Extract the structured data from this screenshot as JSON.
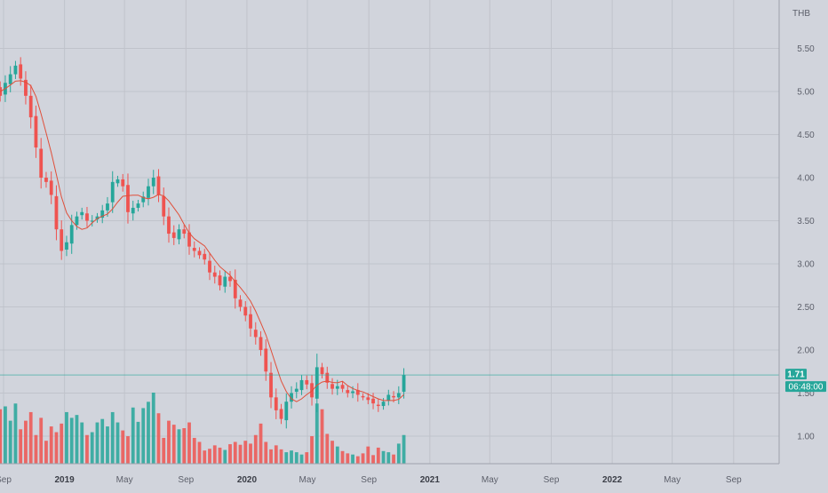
{
  "chart_data": {
    "type": "candlestick",
    "currency_label": "THB",
    "y_ticks": [
      1.0,
      1.5,
      2.0,
      2.5,
      3.0,
      3.5,
      4.0,
      4.5,
      5.0,
      5.5
    ],
    "y_tick_labels": [
      "1.00",
      "1.50",
      "2.00",
      "2.50",
      "3.00",
      "3.50",
      "4.00",
      "4.50",
      "5.00",
      "5.50"
    ],
    "x_ticks": [
      {
        "label": "Sep",
        "date": "2018-09-01",
        "bold": false
      },
      {
        "label": "2019",
        "date": "2019-01-01",
        "bold": true
      },
      {
        "label": "May",
        "date": "2019-05-01",
        "bold": false
      },
      {
        "label": "Sep",
        "date": "2019-09-01",
        "bold": false
      },
      {
        "label": "2020",
        "date": "2020-01-01",
        "bold": true
      },
      {
        "label": "May",
        "date": "2020-05-01",
        "bold": false
      },
      {
        "label": "Sep",
        "date": "2020-09-01",
        "bold": false
      },
      {
        "label": "2021",
        "date": "2021-01-01",
        "bold": true
      },
      {
        "label": "May",
        "date": "2021-05-01",
        "bold": false
      },
      {
        "label": "Sep",
        "date": "2021-09-01",
        "bold": false
      },
      {
        "label": "2022",
        "date": "2022-01-01",
        "bold": true
      },
      {
        "label": "May",
        "date": "2022-05-01",
        "bold": false
      },
      {
        "label": "Sep",
        "date": "2022-09-01",
        "bold": false
      }
    ],
    "last_price": 1.71,
    "last_price_label": "1.71",
    "countdown_label": "06:48:00",
    "series": {
      "closes": [
        5.05,
        4.95,
        5.1,
        5.2,
        5.3,
        5.15,
        4.95,
        4.7,
        4.35,
        4.0,
        3.95,
        3.8,
        3.4,
        3.15,
        3.25,
        3.45,
        3.55,
        3.6,
        3.5,
        3.5,
        3.55,
        3.62,
        3.7,
        3.95,
        3.98,
        3.9,
        3.6,
        3.65,
        3.7,
        3.78,
        3.9,
        4.0,
        3.8,
        3.55,
        3.35,
        3.3,
        3.4,
        3.35,
        3.2,
        3.15,
        3.1,
        3.05,
        2.9,
        2.85,
        2.75,
        2.85,
        2.8,
        2.6,
        2.5,
        2.4,
        2.25,
        2.15,
        2.0,
        1.75,
        1.45,
        1.3,
        1.2,
        1.4,
        1.5,
        1.55,
        1.65,
        1.6,
        1.45,
        1.8,
        1.72,
        1.62,
        1.55,
        1.58,
        1.55,
        1.5,
        1.52,
        1.48,
        1.45,
        1.42,
        1.38,
        1.35,
        1.4,
        1.48,
        1.45,
        1.5,
        1.71
      ],
      "volumes": [
        110,
        95,
        100,
        75,
        105,
        60,
        75,
        90,
        50,
        80,
        40,
        65,
        55,
        70,
        90,
        80,
        85,
        72,
        50,
        55,
        72,
        78,
        65,
        90,
        72,
        58,
        48,
        98,
        73,
        97,
        108,
        124,
        88,
        45,
        75,
        68,
        60,
        62,
        72,
        45,
        38,
        23,
        26,
        32,
        28,
        24,
        34,
        38,
        33,
        40,
        35,
        50,
        70,
        38,
        25,
        32,
        25,
        20,
        23,
        20,
        16,
        20,
        48,
        105,
        95,
        52,
        40,
        30,
        22,
        18,
        16,
        13,
        18,
        30,
        15,
        28,
        22,
        20,
        16,
        35,
        50
      ],
      "color_up": "#26a69a",
      "color_down": "#ef5350",
      "ma_color": "#e04f3a"
    },
    "date_range": [
      "2018-08-15",
      "2020-11-10"
    ],
    "ylim": [
      0.65,
      5.9
    ],
    "grid": true
  },
  "colors": {
    "background": "#d1d4dc",
    "grid": "#c0c3cb",
    "axis_text": "#5d606b",
    "price_line": "#26a69a"
  }
}
